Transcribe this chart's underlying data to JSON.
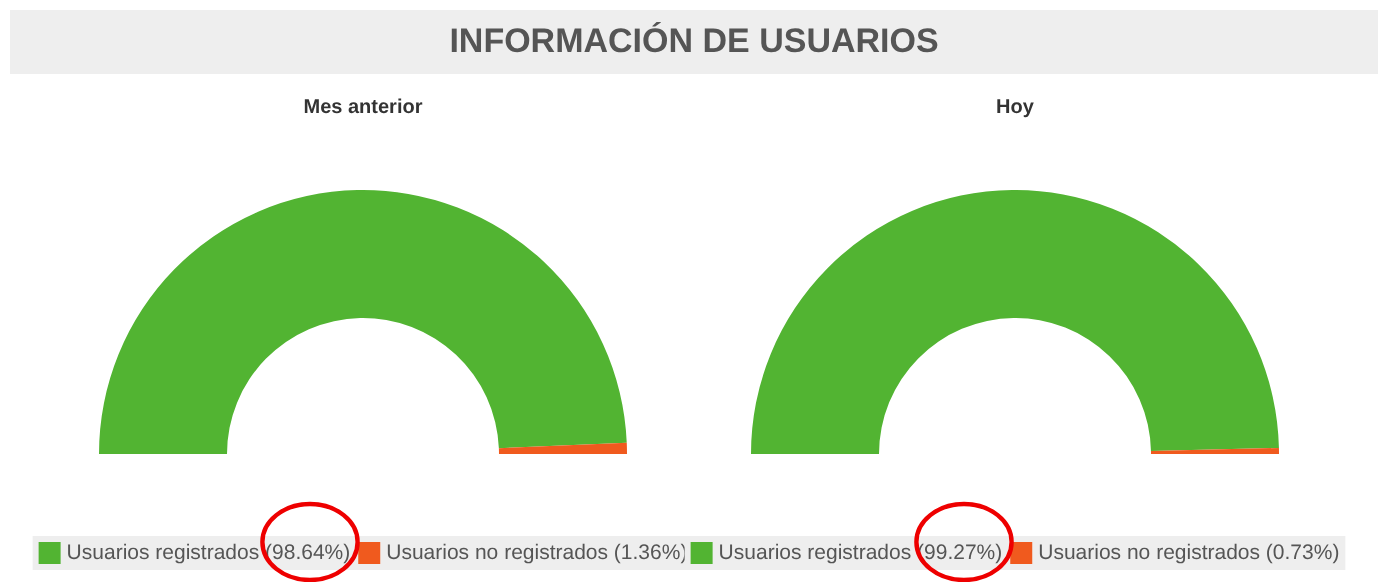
{
  "chart_data": [
    {
      "type": "other",
      "title": "INFORMACIÓN DE USUARIOS"
    },
    {
      "type": "donut",
      "title": "Mes anterior",
      "categories": [
        "Usuarios registrados (98.64%)",
        "Usuarios no registrados (1.36%)"
      ],
      "values": [
        98.64,
        1.36
      ],
      "colors": [
        "#52b432",
        "#f05a1e"
      ],
      "legend": "bottom"
    },
    {
      "type": "donut",
      "title": "Hoy",
      "categories": [
        "Usuarios registrados (99.27%)",
        "Usuarios no registrados (0.73%)"
      ],
      "values": [
        99.27,
        0.73
      ],
      "colors": [
        "#52b432",
        "#f05a1e"
      ],
      "legend": "bottom"
    }
  ]
}
